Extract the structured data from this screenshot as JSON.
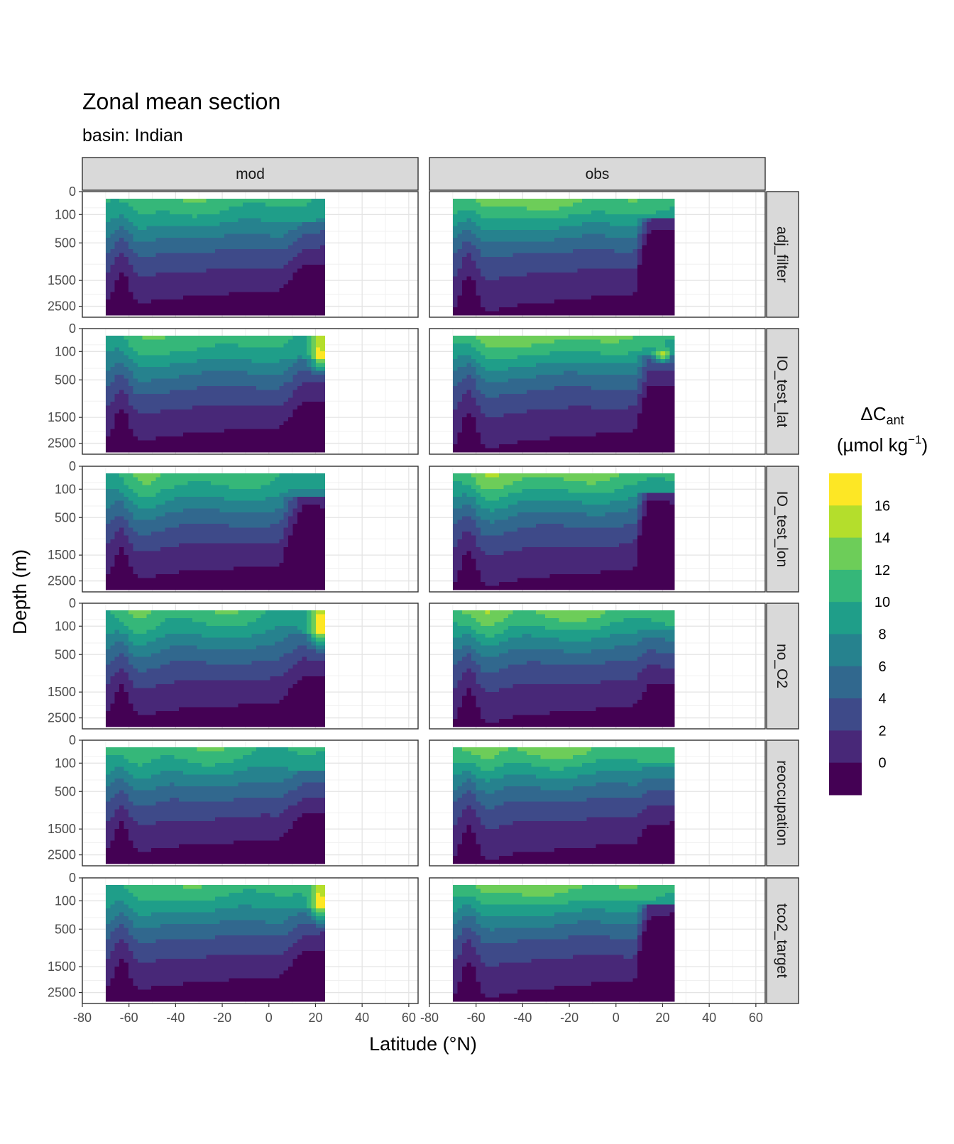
{
  "chart_data": {
    "type": "heatmap",
    "title": "Zonal mean section",
    "subtitle": "basin: Indian",
    "xlabel": "Latitude (°N)",
    "ylabel": "Depth (m)",
    "facet_columns": [
      "mod",
      "obs"
    ],
    "facet_rows": [
      "adj_filter",
      "IO_test_lat",
      "IO_test_lon",
      "no_O2",
      "reoccupation",
      "tco2_target"
    ],
    "x_ticks": [
      "-80",
      "-60",
      "-40",
      "-20",
      "0",
      "20",
      "40",
      "60"
    ],
    "xlim": [
      -80,
      64
    ],
    "y_ticks": [
      "0",
      "100",
      "500",
      "1500",
      "2500"
    ],
    "y_tick_values": [
      0,
      100,
      500,
      1500,
      2500
    ],
    "y_scale": "sqrt (reversed)",
    "ylim": [
      3000,
      0
    ],
    "legend": {
      "title_main": "ΔC",
      "title_sub": "ant",
      "unit_pre": "(µmol kg",
      "unit_sup": "−1",
      "unit_post": ")",
      "position": "right",
      "breaks": [
        "16",
        "14",
        "12",
        "10",
        "8",
        "6",
        "4",
        "2",
        "0"
      ],
      "colors": [
        "#FDE725",
        "#B4DE2C",
        "#6DCD59",
        "#35B779",
        "#1F9E89",
        "#26828E",
        "#31688E",
        "#3E4A89",
        "#482878",
        "#440154"
      ]
    },
    "data_extent": {
      "mod_lat": [
        -70,
        24
      ],
      "obs_lat": [
        -70,
        25
      ]
    },
    "grid": true
  }
}
